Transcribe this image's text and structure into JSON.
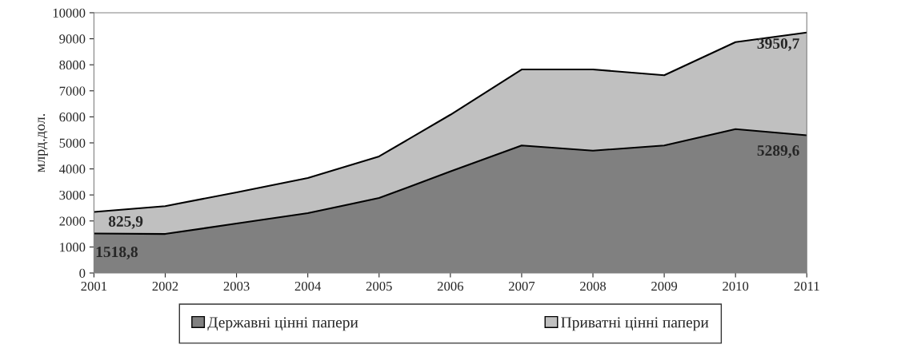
{
  "chart_data": {
    "type": "area",
    "stacked": true,
    "ylabel": "млрд.дол.",
    "x": [
      2001,
      2002,
      2003,
      2004,
      2005,
      2006,
      2007,
      2008,
      2009,
      2010,
      2011
    ],
    "series": [
      {
        "name": "Державні цінні папери",
        "color": "#808080",
        "values": [
          1518.8,
          1500,
          1900,
          2300,
          2880,
          3900,
          4900,
          4700,
          4900,
          5530,
          5289.6
        ],
        "value_labels": [
          "1518,8",
          null,
          null,
          null,
          null,
          null,
          null,
          null,
          null,
          null,
          "5289,6"
        ]
      },
      {
        "name": "Приватні цінні папери",
        "color": "#c0c0c0",
        "values": [
          825.9,
          1070,
          1200,
          1350,
          1600,
          2180,
          2920,
          3120,
          2700,
          3340,
          3950.7
        ],
        "value_labels": [
          "825,9",
          null,
          null,
          null,
          null,
          null,
          null,
          null,
          null,
          null,
          "3950,7"
        ]
      }
    ],
    "xlim": [
      2001,
      2011
    ],
    "xticks": [
      2001,
      2002,
      2003,
      2004,
      2005,
      2006,
      2007,
      2008,
      2009,
      2010,
      2011
    ],
    "ylim": [
      0,
      10000
    ],
    "yticks": [
      0,
      1000,
      2000,
      3000,
      4000,
      5000,
      6000,
      7000,
      8000,
      9000,
      10000
    ],
    "grid": false,
    "legend": "bottom"
  }
}
